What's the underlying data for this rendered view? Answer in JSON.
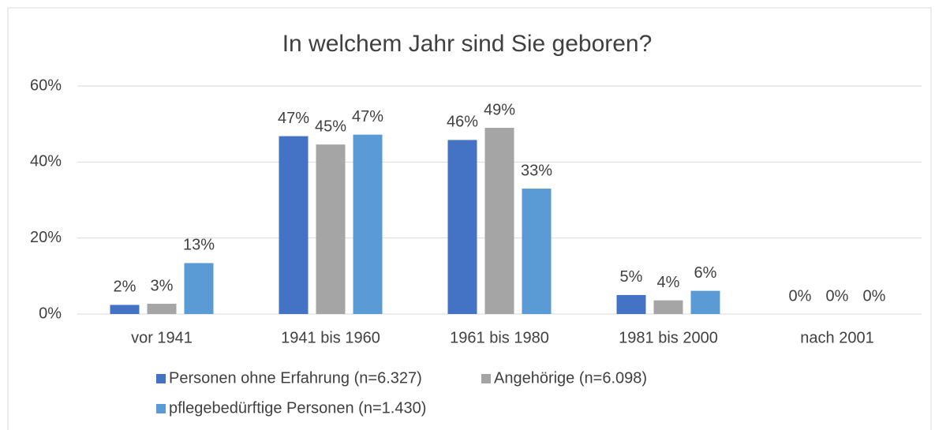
{
  "chart_data": {
    "type": "bar",
    "title": "In welchem Jahr sind Sie geboren?",
    "categories": [
      "vor 1941",
      "1941 bis 1960",
      "1961 bis 1980",
      "1981 bis 2000",
      "nach 2001"
    ],
    "series": [
      {
        "name": "Personen ohne Erfahrung (n=6.327)",
        "color": "#4472c4",
        "values": [
          2.4,
          46.8,
          45.8,
          5.0,
          0
        ],
        "value_labels": [
          "2%",
          "47%",
          "46%",
          "5%",
          "0%"
        ]
      },
      {
        "name": "Angehörige (n=6.098)",
        "color": "#a5a5a5",
        "values": [
          2.7,
          44.6,
          49.0,
          3.6,
          0
        ],
        "value_labels": [
          "3%",
          "45%",
          "49%",
          "4%",
          "0%"
        ]
      },
      {
        "name": "pflegebedürftige Personen (n=1.430)",
        "color": "#5b9bd5",
        "values": [
          13.4,
          47.2,
          33.0,
          6.1,
          0
        ],
        "value_labels": [
          "13%",
          "47%",
          "33%",
          "6%",
          "0%"
        ]
      }
    ],
    "ylim": [
      0,
      60
    ],
    "yticks": [
      {
        "value": 0,
        "label": "0%"
      },
      {
        "value": 20,
        "label": "20%"
      },
      {
        "value": 40,
        "label": "40%"
      },
      {
        "value": 60,
        "label": "60%"
      }
    ],
    "grid": true,
    "legend": "bottom"
  }
}
